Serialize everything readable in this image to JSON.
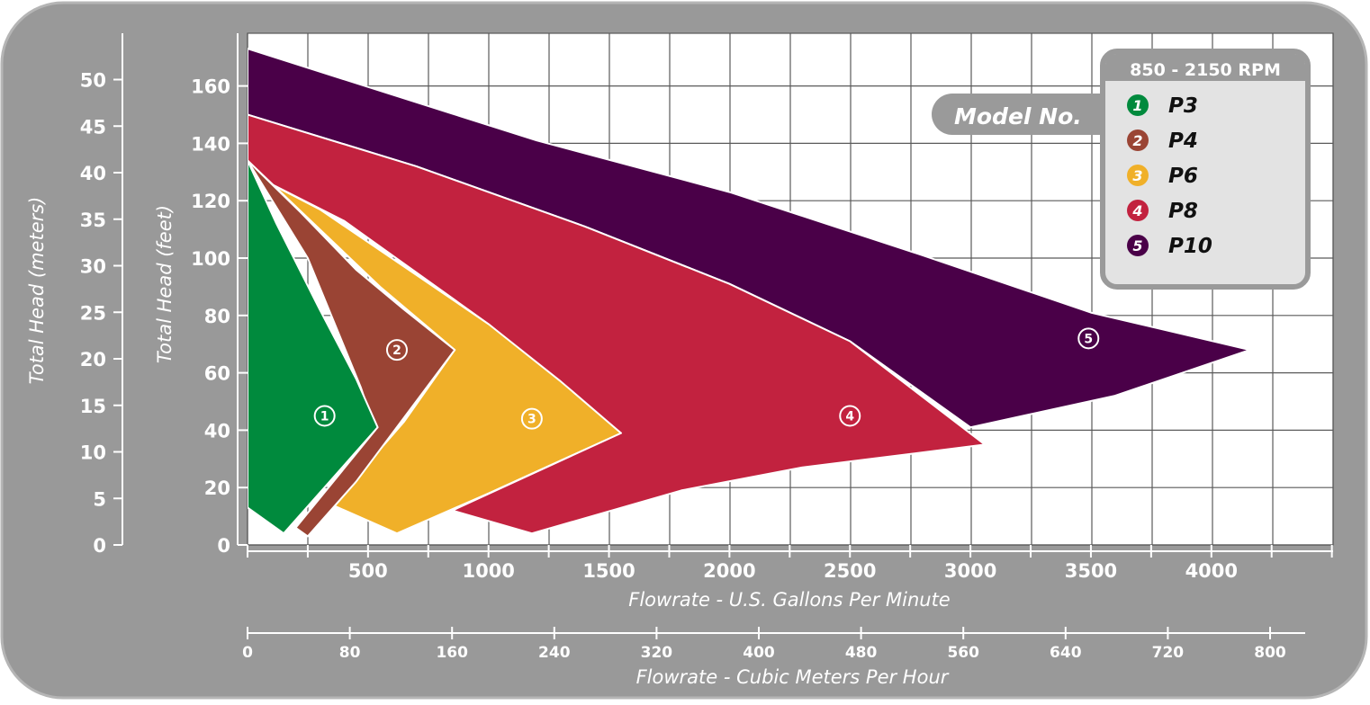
{
  "chart_data": {
    "type": "area",
    "x_primary": {
      "label": "Flowrate - U.S. Gallons Per Minute",
      "range": [
        0,
        4500
      ],
      "ticks": [
        500,
        1000,
        1500,
        2000,
        2500,
        3000,
        3500,
        4000
      ],
      "tick_labels": [
        "500",
        "1000",
        "1500",
        "2000",
        "2500",
        "3000",
        "3500",
        "4000"
      ]
    },
    "x_secondary": {
      "label": "Flowrate - Cubic Meters Per Hour",
      "ticks": [
        0,
        80,
        160,
        240,
        320,
        400,
        480,
        560,
        640,
        720,
        800
      ],
      "tick_labels": [
        "0",
        "80",
        "160",
        "240",
        "320",
        "400",
        "480",
        "560",
        "640",
        "720",
        "800"
      ]
    },
    "y_feet": {
      "label": "Total Head (feet)",
      "range": [
        0,
        170
      ],
      "ticks": [
        0,
        20,
        40,
        60,
        80,
        100,
        120,
        140,
        160
      ],
      "tick_labels": [
        "0",
        "20",
        "40",
        "60",
        "80",
        "100",
        "120",
        "140",
        "160"
      ]
    },
    "y_meters": {
      "label": "Total Head (meters)",
      "ticks": [
        0,
        5,
        10,
        15,
        20,
        25,
        30,
        35,
        40,
        45,
        50
      ],
      "tick_labels": [
        "0",
        "5",
        "10",
        "15",
        "20",
        "25",
        "30",
        "35",
        "40",
        "45",
        "50"
      ]
    },
    "grid": true,
    "legend": {
      "title": "850 - 2150 RPM",
      "tag": "Model No.",
      "placement": "top-right"
    },
    "series": [
      {
        "number": "1",
        "name": "P3",
        "color": "#008a3d",
        "label_point": [
          320,
          45
        ],
        "boundary": [
          [
            0,
            134
          ],
          [
            120,
            112
          ],
          [
            300,
            82
          ],
          [
            450,
            58
          ],
          [
            540,
            41
          ],
          [
            150,
            4
          ],
          [
            0,
            13
          ]
        ]
      },
      {
        "number": "2",
        "name": "P4",
        "color": "#9a4434",
        "label_point": [
          620,
          68
        ],
        "boundary": [
          [
            0,
            134
          ],
          [
            220,
            116
          ],
          [
            450,
            96
          ],
          [
            650,
            82
          ],
          [
            860,
            68
          ],
          [
            450,
            22
          ],
          [
            250,
            3
          ],
          [
            200,
            6
          ],
          [
            530,
            40
          ],
          [
            470,
            55
          ],
          [
            250,
            100
          ],
          [
            0,
            134
          ]
        ]
      },
      {
        "number": "3",
        "name": "P6",
        "color": "#f0b029",
        "label_point": [
          1180,
          44
        ],
        "boundary": [
          [
            0,
            130
          ],
          [
            300,
            117
          ],
          [
            650,
            97
          ],
          [
            1000,
            77
          ],
          [
            1300,
            57
          ],
          [
            1550,
            39
          ],
          [
            1000,
            18
          ],
          [
            620,
            4
          ],
          [
            350,
            14
          ],
          [
            650,
            43
          ],
          [
            860,
            68
          ],
          [
            550,
            90
          ],
          [
            0,
            134
          ]
        ]
      },
      {
        "number": "4",
        "name": "P8",
        "color": "#c2223f",
        "label_point": [
          2500,
          45
        ],
        "boundary": [
          [
            0,
            150
          ],
          [
            700,
            132
          ],
          [
            1400,
            111
          ],
          [
            2000,
            91
          ],
          [
            2500,
            71
          ],
          [
            3060,
            35
          ],
          [
            2300,
            27
          ],
          [
            1800,
            19
          ],
          [
            1180,
            4
          ],
          [
            850,
            12
          ],
          [
            1550,
            39
          ],
          [
            1000,
            77
          ],
          [
            400,
            113
          ],
          [
            0,
            130
          ]
        ]
      },
      {
        "number": "5",
        "name": "P10",
        "color": "#4a0048",
        "label_point": [
          3490,
          72
        ],
        "boundary": [
          [
            0,
            173
          ],
          [
            600,
            157
          ],
          [
            1200,
            141
          ],
          [
            2000,
            123
          ],
          [
            2800,
            101
          ],
          [
            3500,
            81
          ],
          [
            4160,
            68
          ],
          [
            3600,
            52
          ],
          [
            3000,
            41
          ],
          [
            2500,
            71
          ],
          [
            2000,
            91
          ],
          [
            1400,
            111
          ],
          [
            700,
            132
          ],
          [
            0,
            150
          ]
        ]
      }
    ]
  }
}
